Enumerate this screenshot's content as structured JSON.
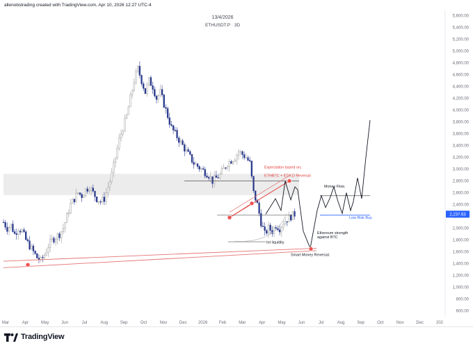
{
  "header": {
    "credit": "allenobstrading created with TradingView.com, Apr 10, 2026 12:27 UTC-4"
  },
  "footer": {
    "logo_text": "TradingView"
  },
  "chart_data": {
    "type": "candlestick",
    "title": "13/4/2026",
    "subtitle": "ETHUSDT.P · 3D",
    "price_label": "2,237.63",
    "ylim": [
      500,
      5700
    ],
    "y_ticks": [
      600,
      800,
      1000,
      1200,
      1400,
      1600,
      1800,
      2000,
      2200,
      2400,
      2600,
      2800,
      3000,
      3200,
      3400,
      3600,
      3800,
      4000,
      4200,
      4400,
      4600,
      4800,
      5000,
      5200,
      5400,
      5600
    ],
    "x_labels": [
      "Mar",
      "Apr",
      "May",
      "Jun",
      "Jul",
      "Aug",
      "Sep",
      "Oct",
      "Nov",
      "Dec",
      "2026",
      "Feb",
      "Mar",
      "Apr",
      "May",
      "Jun",
      "Jul",
      "Aug",
      "Sep",
      "Oct",
      "Nov",
      "Dec",
      "202"
    ],
    "price_path": [
      [
        0,
        2100
      ],
      [
        3,
        2000
      ],
      [
        6,
        2050
      ],
      [
        9,
        1900
      ],
      [
        12,
        2000
      ],
      [
        15,
        1950
      ],
      [
        18,
        1800
      ],
      [
        21,
        1700
      ],
      [
        24,
        1600
      ],
      [
        27,
        1500
      ],
      [
        30,
        1450
      ],
      [
        33,
        1550
      ],
      [
        36,
        1700
      ],
      [
        39,
        1800
      ],
      [
        42,
        1850
      ],
      [
        45,
        1900
      ],
      [
        48,
        2000
      ],
      [
        51,
        2200
      ],
      [
        54,
        2400
      ],
      [
        57,
        2500
      ],
      [
        60,
        2600
      ],
      [
        63,
        2550
      ],
      [
        66,
        2650
      ],
      [
        69,
        2700
      ],
      [
        72,
        2600
      ],
      [
        75,
        2500
      ],
      [
        78,
        2450
      ],
      [
        81,
        2500
      ],
      [
        84,
        2700
      ],
      [
        87,
        2900
      ],
      [
        90,
        3200
      ],
      [
        93,
        3500
      ],
      [
        96,
        3700
      ],
      [
        99,
        3900
      ],
      [
        102,
        4200
      ],
      [
        105,
        4500
      ],
      [
        108,
        4700
      ],
      [
        111,
        4500
      ],
      [
        114,
        4300
      ],
      [
        117,
        4500
      ],
      [
        120,
        4400
      ],
      [
        123,
        4200
      ],
      [
        126,
        4300
      ],
      [
        129,
        4100
      ],
      [
        132,
        3900
      ],
      [
        135,
        3700
      ],
      [
        138,
        3600
      ],
      [
        141,
        3500
      ],
      [
        144,
        3400
      ],
      [
        147,
        3300
      ],
      [
        150,
        3200
      ],
      [
        153,
        3100
      ],
      [
        156,
        3050
      ],
      [
        159,
        3000
      ],
      [
        162,
        2950
      ],
      [
        165,
        2900
      ],
      [
        168,
        2800
      ],
      [
        171,
        2850
      ],
      [
        174,
        2900
      ],
      [
        177,
        3000
      ],
      [
        180,
        3100
      ],
      [
        183,
        3150
      ],
      [
        186,
        3200
      ],
      [
        189,
        3300
      ],
      [
        192,
        3250
      ],
      [
        195,
        3200
      ],
      [
        198,
        3100
      ],
      [
        201,
        2600
      ],
      [
        204,
        2400
      ],
      [
        207,
        2100
      ],
      [
        210,
        1900
      ],
      [
        213,
        2000
      ],
      [
        216,
        1950
      ],
      [
        219,
        2050
      ],
      [
        222,
        2000
      ],
      [
        225,
        2100
      ],
      [
        228,
        2150
      ],
      [
        231,
        2200
      ],
      [
        234,
        2237
      ]
    ],
    "levels": [
      {
        "name": "range-top",
        "value": 2800
      },
      {
        "name": "range-bottom",
        "value": 2220
      },
      {
        "name": "low-risk-buy",
        "value": 2220
      },
      {
        "name": "money-flow",
        "value": 2550
      },
      {
        "name": "int-liquidity",
        "value": 1770
      }
    ],
    "supply_zone": [
      2560,
      2920
    ],
    "annotations": [
      {
        "text": "Expectation based on;",
        "color": "#e53935"
      },
      {
        "text": "ETHBTC + ETH.D Reversal",
        "color": "#e53935"
      },
      {
        "text": "Money Flow.",
        "color": "#131722"
      },
      {
        "text": "Low Risk Buy",
        "color": "#2962ff"
      },
      {
        "text": "Ethereum strength",
        "color": "#131722"
      },
      {
        "text": "against BTC",
        "color": "#131722"
      },
      {
        "text": "Int liquidity.",
        "color": "#131722"
      },
      {
        "text": "Smart Money Reversal.",
        "color": "#131722"
      }
    ],
    "projection_path": [
      [
        234,
        2237
      ],
      [
        238,
        2500
      ],
      [
        242,
        2800
      ],
      [
        246,
        2500
      ],
      [
        250,
        2700
      ],
      [
        254,
        2100
      ],
      [
        258,
        1650
      ],
      [
        262,
        2000
      ],
      [
        266,
        2400
      ],
      [
        270,
        2200
      ],
      [
        274,
        2650
      ],
      [
        278,
        2300
      ],
      [
        282,
        2200
      ],
      [
        286,
        2500
      ],
      [
        290,
        2150
      ],
      [
        294,
        2400
      ],
      [
        298,
        2500
      ],
      [
        302,
        2300
      ],
      [
        306,
        2800
      ],
      [
        310,
        2500
      ],
      [
        314,
        3000
      ],
      [
        320,
        3800
      ]
    ],
    "key_points": [
      {
        "name": "apr-low",
        "x": 22,
        "y": 1380
      },
      {
        "name": "feb-low",
        "x": 205,
        "y": 2180
      },
      {
        "name": "mar-high",
        "x": 218,
        "y": 2420
      },
      {
        "name": "target-high",
        "x": 258,
        "y": 2800
      },
      {
        "name": "reversal-point",
        "x": 268,
        "y": 1660
      }
    ]
  }
}
